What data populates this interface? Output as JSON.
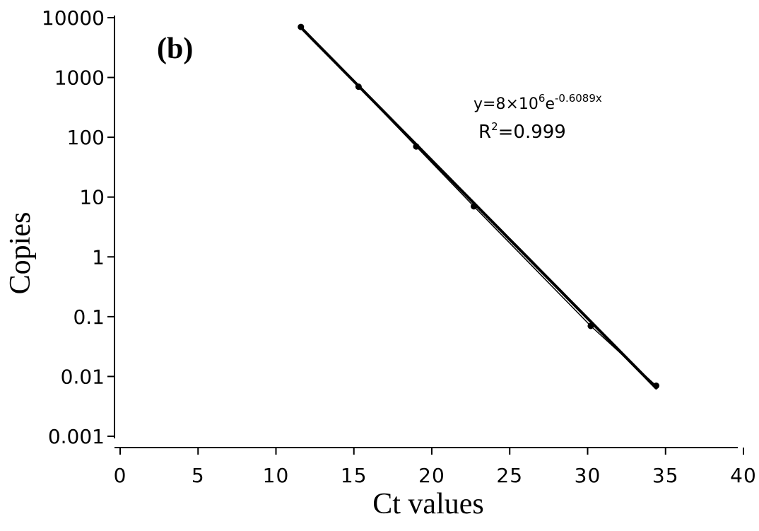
{
  "chart_data": {
    "type": "scatter",
    "panel_label": "(b)",
    "xlabel": "Ct values",
    "ylabel": "Copies",
    "xlim": [
      0,
      40
    ],
    "ylim": [
      0.001,
      10000
    ],
    "y_scale": "log",
    "x_ticks": [
      "0",
      "5",
      "10",
      "15",
      "20",
      "25",
      "30",
      "35",
      "40"
    ],
    "y_ticks": [
      "10000",
      "1000",
      "100",
      "10",
      "1",
      "0.1",
      "0.01",
      "0.001"
    ],
    "grid": false,
    "series": [
      {
        "x": [
          11.6,
          15.3,
          19.0,
          22.7,
          30.2,
          34.4
        ],
        "y": [
          7000,
          700,
          70,
          7,
          0.07,
          0.007
        ]
      }
    ],
    "trendline": {
      "type": "exponential",
      "a": 8000000,
      "b": -0.6089,
      "x_range": [
        11.6,
        34.4
      ]
    },
    "annotations": {
      "equation": {
        "prefix": "y=8×10",
        "exp1": "6",
        "mid": "e",
        "exp2": "-0.6089x"
      },
      "r2": {
        "prefix": "R",
        "exp": "2",
        "suffix": "=0.999"
      }
    }
  }
}
